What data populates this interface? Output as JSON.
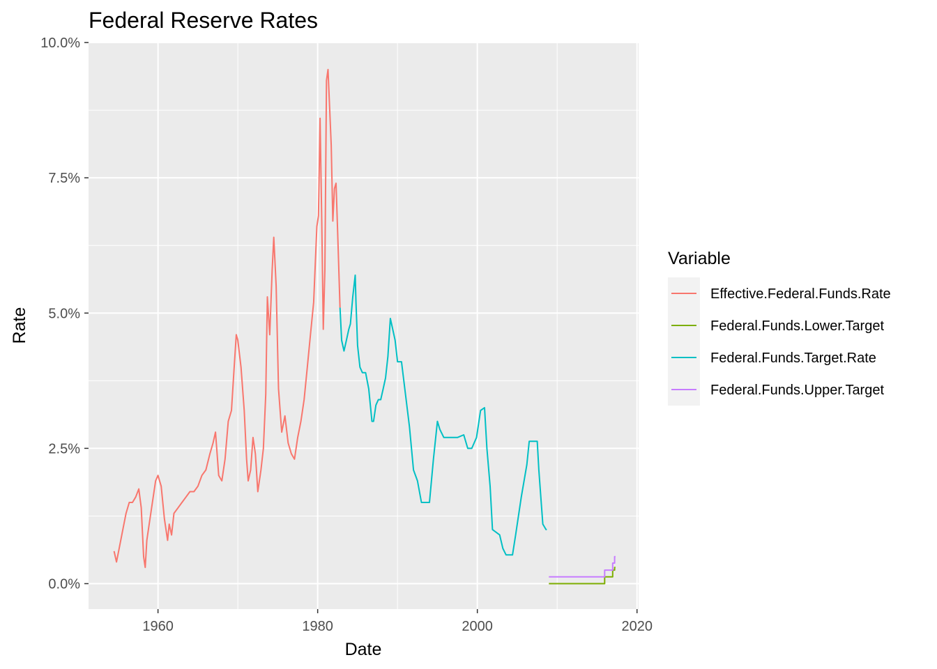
{
  "chart_data": {
    "type": "line",
    "title": "Federal Reserve Rates",
    "xlabel": "Date",
    "ylabel": "Rate",
    "xlim": [
      1951.3,
      2020.2
    ],
    "ylim": [
      -0.0047,
      0.1
    ],
    "x_ticks": [
      1960,
      1980,
      2000,
      2020
    ],
    "x_tick_labels": [
      "1960",
      "1980",
      "2000",
      "2020"
    ],
    "y_ticks": [
      0,
      0.025,
      0.05,
      0.075,
      0.1
    ],
    "y_tick_labels": [
      "0.0%",
      "2.5%",
      "5.0%",
      "7.5%",
      "10.0%"
    ],
    "grid": true,
    "legend": {
      "title": "Variable",
      "position": "right"
    },
    "series": [
      {
        "name": "Effective.Federal.Funds.Rate",
        "color": "#F8766D",
        "x": [
          1954.5,
          1954.8,
          1955.2,
          1955.6,
          1956.0,
          1956.4,
          1956.8,
          1957.2,
          1957.6,
          1957.9,
          1958.2,
          1958.4,
          1958.6,
          1958.9,
          1959.3,
          1959.7,
          1960.0,
          1960.4,
          1960.8,
          1961.2,
          1961.4,
          1961.7,
          1962.0,
          1962.5,
          1963.0,
          1963.5,
          1964.0,
          1964.5,
          1965.0,
          1965.5,
          1966.0,
          1966.5,
          1966.9,
          1967.2,
          1967.6,
          1968.0,
          1968.4,
          1968.8,
          1969.2,
          1969.5,
          1969.8,
          1970.0,
          1970.4,
          1970.8,
          1971.1,
          1971.3,
          1971.6,
          1971.9,
          1972.2,
          1972.5,
          1972.9,
          1973.2,
          1973.5,
          1973.7,
          1974.0,
          1974.3,
          1974.5,
          1974.8,
          1975.1,
          1975.5,
          1975.9,
          1976.3,
          1976.7,
          1977.1,
          1977.5,
          1977.9,
          1978.3,
          1978.7,
          1979.1,
          1979.5,
          1979.9,
          1980.1,
          1980.3,
          1980.5,
          1980.7,
          1980.9,
          1981.1,
          1981.3,
          1981.5,
          1981.7,
          1981.9,
          1982.1,
          1982.3,
          1982.5,
          1982.8
        ],
        "values": [
          0.006,
          0.004,
          0.007,
          0.01,
          0.013,
          0.015,
          0.015,
          0.016,
          0.0175,
          0.014,
          0.005,
          0.003,
          0.008,
          0.011,
          0.015,
          0.019,
          0.02,
          0.018,
          0.012,
          0.008,
          0.011,
          0.009,
          0.013,
          0.014,
          0.015,
          0.016,
          0.017,
          0.017,
          0.018,
          0.02,
          0.021,
          0.024,
          0.026,
          0.028,
          0.02,
          0.019,
          0.023,
          0.03,
          0.032,
          0.039,
          0.046,
          0.045,
          0.04,
          0.032,
          0.023,
          0.019,
          0.021,
          0.027,
          0.024,
          0.017,
          0.021,
          0.025,
          0.035,
          0.053,
          0.046,
          0.058,
          0.064,
          0.055,
          0.036,
          0.028,
          0.031,
          0.026,
          0.024,
          0.023,
          0.027,
          0.03,
          0.034,
          0.04,
          0.046,
          0.052,
          0.066,
          0.068,
          0.086,
          0.068,
          0.047,
          0.058,
          0.093,
          0.095,
          0.088,
          0.081,
          0.067,
          0.073,
          0.074,
          0.065,
          0.051
        ]
      },
      {
        "name": "Federal.Funds.Lower.Target",
        "color": "#7CAE00",
        "x": [
          2008.96,
          2015.95,
          2015.95,
          2016.95,
          2016.95,
          2017.2,
          2017.2,
          2017.3
        ],
        "values": [
          0.0,
          0.0,
          0.00125,
          0.00125,
          0.0025,
          0.0025,
          0.003,
          0.003
        ]
      },
      {
        "name": "Federal.Funds.Target.Rate",
        "color": "#00BFC4",
        "x": [
          1982.8,
          1983.0,
          1983.3,
          1983.6,
          1983.9,
          1984.1,
          1984.4,
          1984.7,
          1984.8,
          1985.0,
          1985.3,
          1985.6,
          1986.0,
          1986.4,
          1986.8,
          1987.0,
          1987.3,
          1987.6,
          1987.9,
          1988.2,
          1988.5,
          1988.8,
          1989.1,
          1989.4,
          1989.7,
          1990.0,
          1990.5,
          1991.0,
          1991.5,
          1992.0,
          1992.5,
          1993.0,
          1994.0,
          1994.5,
          1995.0,
          1995.3,
          1995.8,
          1996.5,
          1997.5,
          1998.3,
          1998.8,
          1999.3,
          1999.9,
          2000.4,
          2000.9,
          2001.2,
          2001.6,
          2001.9,
          2002.8,
          2003.2,
          2003.6,
          2004.4,
          2004.8,
          2005.5,
          2006.2,
          2006.5,
          2007.5,
          2007.7,
          2008.0,
          2008.2,
          2008.6,
          2008.7
        ],
        "values": [
          0.051,
          0.045,
          0.043,
          0.045,
          0.047,
          0.048,
          0.053,
          0.057,
          0.052,
          0.044,
          0.04,
          0.039,
          0.039,
          0.036,
          0.03,
          0.03,
          0.033,
          0.034,
          0.034,
          0.036,
          0.038,
          0.042,
          0.049,
          0.047,
          0.045,
          0.041,
          0.041,
          0.035,
          0.029,
          0.021,
          0.019,
          0.015,
          0.015,
          0.023,
          0.03,
          0.0285,
          0.027,
          0.027,
          0.027,
          0.0275,
          0.025,
          0.025,
          0.027,
          0.032,
          0.0325,
          0.025,
          0.018,
          0.01,
          0.009,
          0.0065,
          0.0053,
          0.0053,
          0.009,
          0.016,
          0.022,
          0.0263,
          0.0263,
          0.021,
          0.015,
          0.011,
          0.01,
          0.01
        ]
      },
      {
        "name": "Federal.Funds.Upper.Target",
        "color": "#C77CFF",
        "x": [
          2008.96,
          2015.95,
          2015.95,
          2016.95,
          2016.95,
          2017.2,
          2017.2,
          2017.3
        ],
        "values": [
          0.00125,
          0.00125,
          0.0025,
          0.0025,
          0.0038,
          0.0038,
          0.005,
          0.005
        ]
      }
    ]
  }
}
